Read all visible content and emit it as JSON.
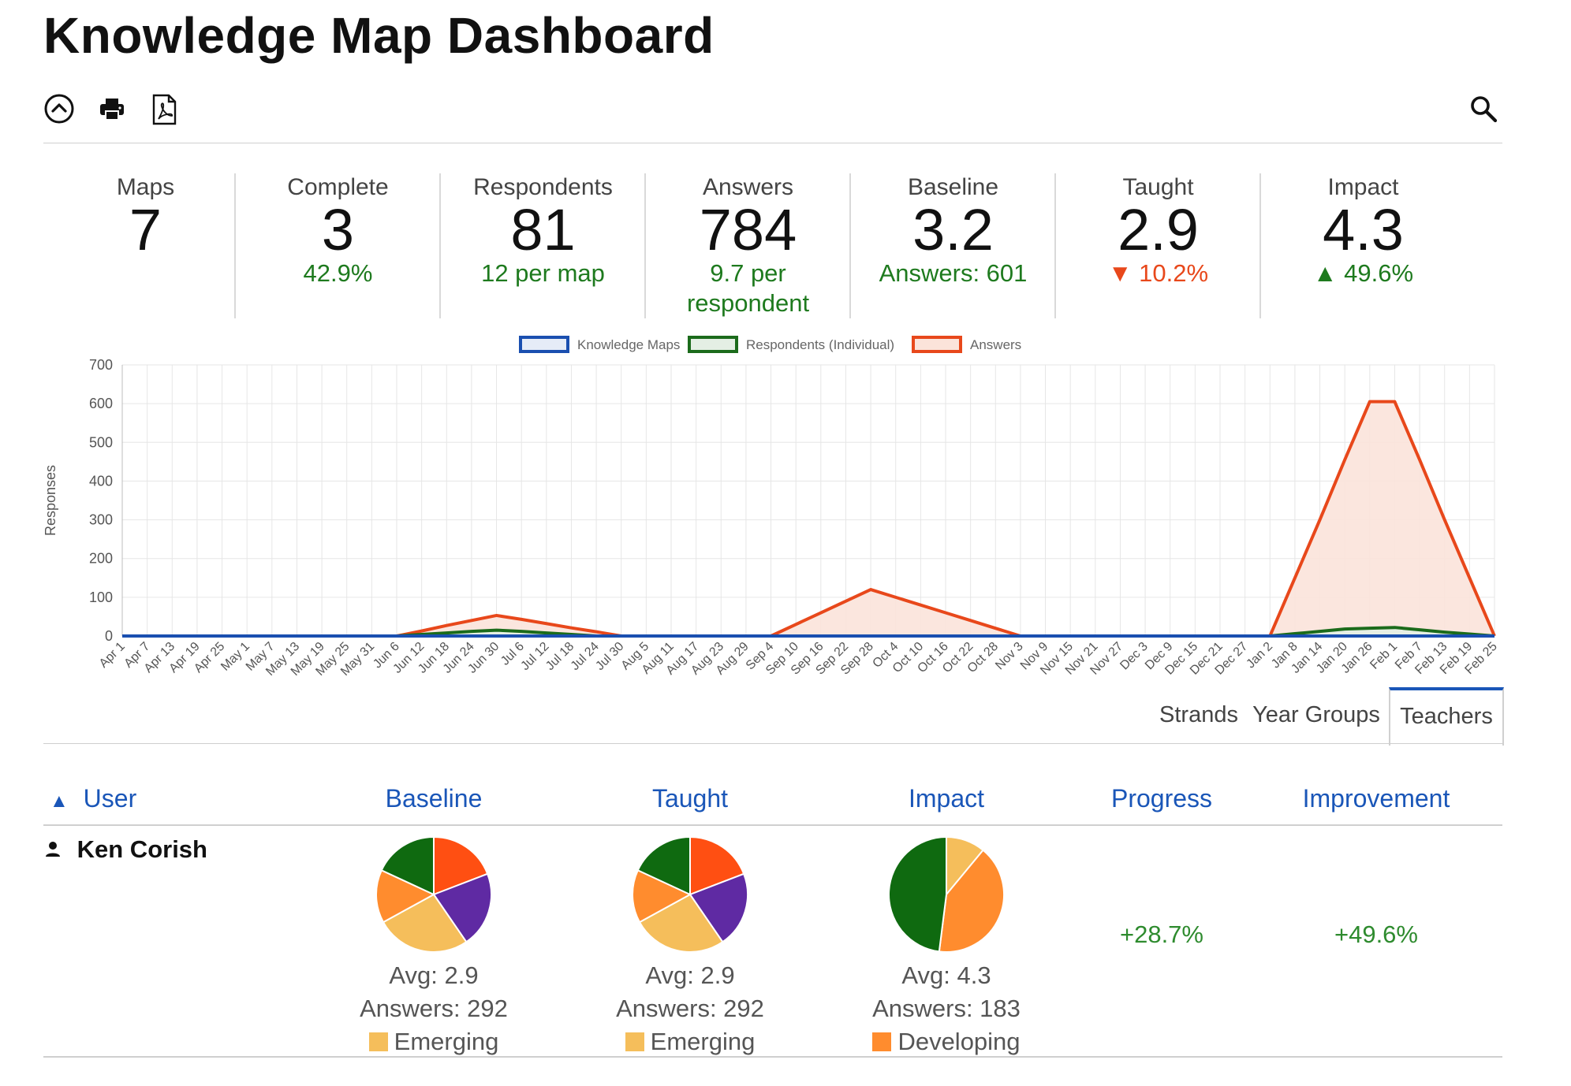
{
  "page": {
    "title": "Knowledge Map Dashboard"
  },
  "toolbar": {
    "icons": [
      "collapse-icon",
      "print-icon",
      "pdf-icon",
      "search-icon"
    ]
  },
  "stats": [
    {
      "label": "Maps",
      "value": "7",
      "sub": "",
      "sub_color": "green"
    },
    {
      "label": "Complete",
      "value": "3",
      "sub": "42.9%",
      "sub_color": "green"
    },
    {
      "label": "Respondents",
      "value": "81",
      "sub": "12 per map",
      "sub_color": "green"
    },
    {
      "label": "Answers",
      "value": "784",
      "sub": "9.7 per respondent",
      "sub_color": "green"
    },
    {
      "label": "Baseline",
      "value": "3.2",
      "sub": "Answers: 601",
      "sub_color": "green"
    },
    {
      "label": "Taught",
      "value": "2.9",
      "sub": "▼ 10.2%",
      "sub_color": "red"
    },
    {
      "label": "Impact",
      "value": "4.3",
      "sub": "▲ 49.6%",
      "sub_color": "green"
    }
  ],
  "chart_data": {
    "type": "area",
    "ylabel": "Responses",
    "xlabel": "",
    "ylim": [
      0,
      700
    ],
    "yticks": [
      0,
      100,
      200,
      300,
      400,
      500,
      600,
      700
    ],
    "grid": true,
    "legend_position": "top",
    "categories": [
      "Apr 1",
      "Apr 7",
      "Apr 13",
      "Apr 19",
      "Apr 25",
      "May 1",
      "May 7",
      "May 13",
      "May 19",
      "May 25",
      "May 31",
      "Jun 6",
      "Jun 12",
      "Jun 18",
      "Jun 24",
      "Jun 30",
      "Jul 6",
      "Jul 12",
      "Jul 18",
      "Jul 24",
      "Jul 30",
      "Aug 5",
      "Aug 11",
      "Aug 17",
      "Aug 23",
      "Aug 29",
      "Sep 4",
      "Sep 10",
      "Sep 16",
      "Sep 22",
      "Sep 28",
      "Oct 4",
      "Oct 10",
      "Oct 16",
      "Oct 22",
      "Oct 28",
      "Nov 3",
      "Nov 9",
      "Nov 15",
      "Nov 21",
      "Nov 27",
      "Dec 3",
      "Dec 9",
      "Dec 15",
      "Dec 21",
      "Dec 27",
      "Jan 2",
      "Jan 8",
      "Jan 14",
      "Jan 20",
      "Jan 26",
      "Feb 1",
      "Feb 7",
      "Feb 13",
      "Feb 19",
      "Feb 25"
    ],
    "series": [
      {
        "name": "Knowledge Maps",
        "color": "#1a4fb0",
        "fill": "#e6ecf7",
        "values": [
          0,
          0,
          0,
          0,
          0,
          0,
          0,
          0,
          0,
          0,
          0,
          0,
          0,
          0,
          0,
          0,
          0,
          0,
          0,
          0,
          0,
          0,
          0,
          0,
          0,
          0,
          0,
          0,
          0,
          0,
          0,
          0,
          0,
          0,
          0,
          0,
          0,
          0,
          0,
          0,
          0,
          0,
          0,
          0,
          0,
          0,
          0,
          0,
          0,
          0,
          0,
          0,
          0,
          0,
          0,
          0
        ]
      },
      {
        "name": "Respondents (Individual)",
        "color": "#1b6b1b",
        "fill": "#e4efe4",
        "values": [
          0,
          0,
          0,
          0,
          0,
          0,
          0,
          0,
          0,
          0,
          0,
          0,
          4,
          8,
          12,
          15,
          12,
          8,
          4,
          0,
          0,
          0,
          0,
          0,
          0,
          0,
          0,
          0,
          0,
          0,
          0,
          0,
          0,
          0,
          0,
          0,
          0,
          0,
          0,
          0,
          0,
          0,
          0,
          0,
          0,
          0,
          0,
          6,
          12,
          18,
          20,
          22,
          16,
          10,
          5,
          0
        ]
      },
      {
        "name": "Answers",
        "color": "#e8481b",
        "fill": "#fbe3da",
        "values": [
          0,
          0,
          0,
          0,
          0,
          0,
          0,
          0,
          0,
          0,
          0,
          0,
          13,
          27,
          40,
          53,
          43,
          32,
          21,
          11,
          0,
          0,
          0,
          0,
          0,
          0,
          0,
          30,
          60,
          90,
          120,
          100,
          80,
          60,
          40,
          20,
          0,
          0,
          0,
          0,
          0,
          0,
          0,
          0,
          0,
          0,
          0,
          150,
          300,
          455,
          605,
          605,
          455,
          300,
          150,
          0
        ]
      }
    ]
  },
  "tabs": [
    {
      "label": "Strands",
      "active": false
    },
    {
      "label": "Year Groups",
      "active": false
    },
    {
      "label": "Teachers",
      "active": true
    }
  ],
  "table": {
    "headers": {
      "user": "User",
      "baseline": "Baseline",
      "taught": "Taught",
      "impact": "Impact",
      "progress": "Progress",
      "improvement": "Improvement"
    },
    "sort_indicator": "▲",
    "rows": [
      {
        "user": "Ken Corish",
        "baseline": {
          "avg": "Avg: 2.9",
          "answers": "Answers: 292",
          "level": "Emerging",
          "level_color": "#f5be5b",
          "slices": [
            {
              "value": 18,
              "color": "#ff4f12"
            },
            {
              "value": 20,
              "color": "#5f2aa3"
            },
            {
              "value": 25,
              "color": "#f5be5b"
            },
            {
              "value": 14,
              "color": "#ff8c2e"
            },
            {
              "value": 17,
              "color": "#0f6a10"
            }
          ]
        },
        "taught": {
          "avg": "Avg: 2.9",
          "answers": "Answers: 292",
          "level": "Emerging",
          "level_color": "#f5be5b",
          "slices": [
            {
              "value": 18,
              "color": "#ff4f12"
            },
            {
              "value": 20,
              "color": "#5f2aa3"
            },
            {
              "value": 25,
              "color": "#f5be5b"
            },
            {
              "value": 14,
              "color": "#ff8c2e"
            },
            {
              "value": 17,
              "color": "#0f6a10"
            }
          ]
        },
        "impact": {
          "avg": "Avg: 4.3",
          "answers": "Answers: 183",
          "level": "Developing",
          "level_color": "#ff8c2e",
          "slices": [
            {
              "value": 11,
              "color": "#f5be5b"
            },
            {
              "value": 41,
              "color": "#ff8c2e"
            },
            {
              "value": 48,
              "color": "#0f6a10"
            }
          ]
        },
        "progress": "+28.7%",
        "improvement": "+49.6%"
      }
    ]
  }
}
